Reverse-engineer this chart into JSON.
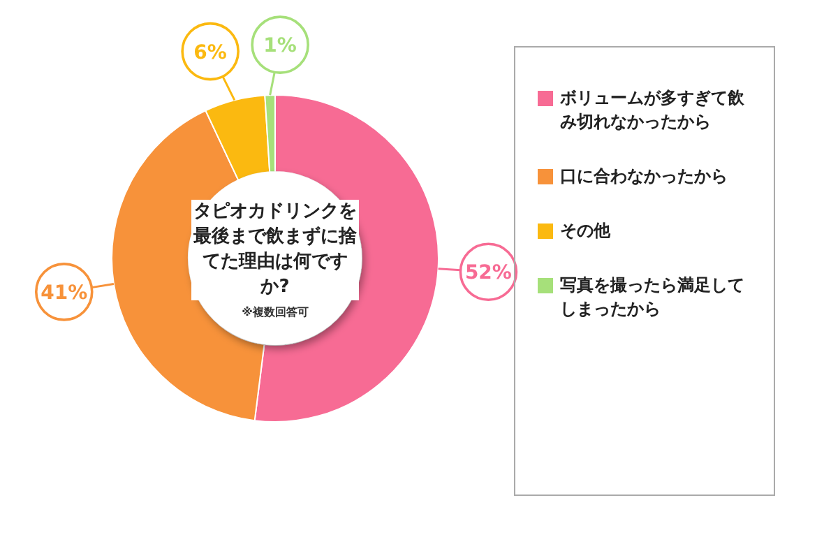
{
  "chart_data": {
    "type": "donut",
    "title": "タピオカドリンクを最後まで飲まずに捨てた理由は何ですか?",
    "annotations": [
      "※複数回答可"
    ],
    "categories": [
      "ボリュームが多すぎて飲み切れなかったから",
      "口に合わなかったから",
      "その他",
      "写真を撮ったら満足してしまったから"
    ],
    "values": [
      52,
      41,
      6,
      1
    ],
    "colors": [
      "#f76b94",
      "#f7923a",
      "#fbb910",
      "#a6e07a"
    ],
    "value_labels": [
      "52%",
      "41%",
      "6%",
      "1%"
    ],
    "legend": "right"
  }
}
